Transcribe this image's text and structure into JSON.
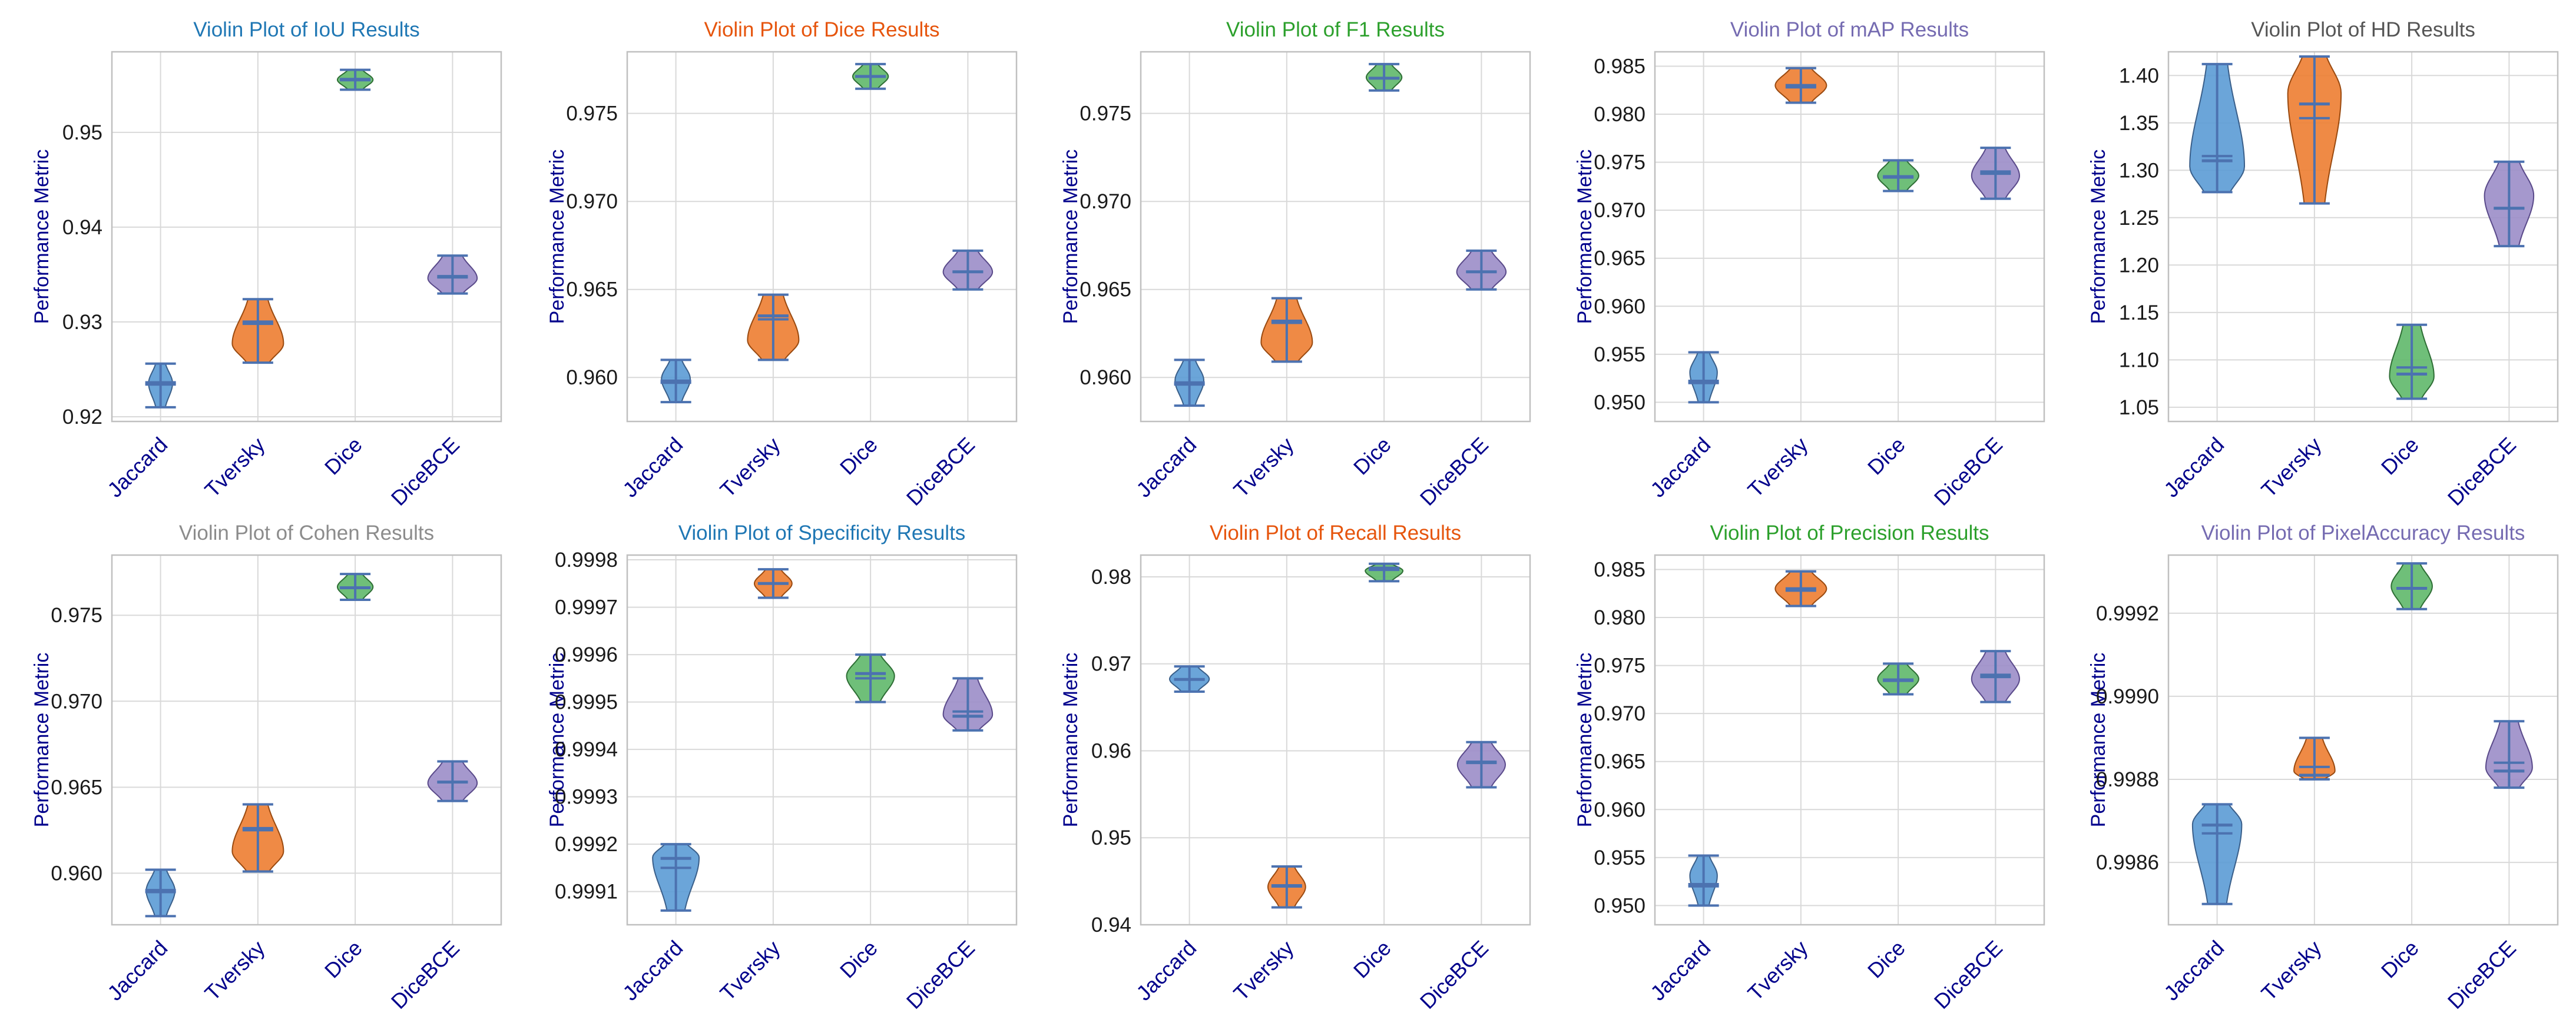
{
  "colors": {
    "series": [
      "#5b9bd5",
      "#ed7d31",
      "#5fb86a",
      "#9b8dc8"
    ],
    "edge": [
      "#3a5f8a",
      "#9a4a10",
      "#2e6e35",
      "#5a4a8a"
    ],
    "inner": "#4c72b0",
    "grid": "#d9d9d9",
    "frame": "#c0c0c0",
    "tick": "#1a1a1a",
    "ylabel": "#00008b",
    "xtick": "#00008b"
  },
  "chart_data": [
    {
      "type": "violin",
      "title": "Violin Plot of IoU Results",
      "title_color": "#1f77b4",
      "ylabel": "Performance Metric",
      "categories": [
        "Jaccard",
        "Tversky",
        "Dice",
        "DiceBCE"
      ],
      "ylim": [
        0.9195,
        0.9585
      ],
      "yticks": [
        0.92,
        0.93,
        0.94,
        0.95
      ],
      "ytick_labels": [
        "0.92",
        "0.93",
        "0.94",
        "0.95"
      ],
      "grid": true,
      "violins": [
        {
          "min": 0.921,
          "max": 0.9256,
          "median": 0.9236,
          "mean": 0.9234,
          "bulge": 0.35,
          "peak": 0.55
        },
        {
          "min": 0.9257,
          "max": 0.9324,
          "median": 0.93,
          "mean": 0.9298,
          "bulge": 0.75,
          "peak": 0.3
        },
        {
          "min": 0.9545,
          "max": 0.9566,
          "median": 0.9556,
          "mean": 0.9555,
          "bulge": 0.52,
          "peak": 0.5
        },
        {
          "min": 0.933,
          "max": 0.937,
          "median": 0.9348,
          "mean": 0.9347,
          "bulge": 0.72,
          "peak": 0.4
        }
      ]
    },
    {
      "type": "violin",
      "title": "Violin Plot of Dice Results",
      "title_color": "#e6550d",
      "ylabel": "Performance Metric",
      "categories": [
        "Jaccard",
        "Tversky",
        "Dice",
        "DiceBCE"
      ],
      "ylim": [
        0.9575,
        0.9785
      ],
      "yticks": [
        0.96,
        0.965,
        0.97,
        0.975
      ],
      "ytick_labels": [
        "0.960",
        "0.965",
        "0.970",
        "0.975"
      ],
      "grid": true,
      "violins": [
        {
          "min": 0.9586,
          "max": 0.961,
          "median": 0.9598,
          "mean": 0.9597,
          "bulge": 0.42,
          "peak": 0.55
        },
        {
          "min": 0.961,
          "max": 0.9647,
          "median": 0.9635,
          "mean": 0.9633,
          "bulge": 0.75,
          "peak": 0.3
        },
        {
          "min": 0.9764,
          "max": 0.9778,
          "median": 0.9771,
          "mean": 0.9771,
          "bulge": 0.52,
          "peak": 0.5
        },
        {
          "min": 0.965,
          "max": 0.9672,
          "median": 0.966,
          "mean": 0.966,
          "bulge": 0.72,
          "peak": 0.45
        }
      ]
    },
    {
      "type": "violin",
      "title": "Violin Plot of F1 Results",
      "title_color": "#2ca02c",
      "ylabel": "Performance Metric",
      "categories": [
        "Jaccard",
        "Tversky",
        "Dice",
        "DiceBCE"
      ],
      "ylim": [
        0.9575,
        0.9785
      ],
      "yticks": [
        0.96,
        0.965,
        0.97,
        0.975
      ],
      "ytick_labels": [
        "0.960",
        "0.965",
        "0.970",
        "0.975"
      ],
      "grid": true,
      "violins": [
        {
          "min": 0.9584,
          "max": 0.961,
          "median": 0.9597,
          "mean": 0.9596,
          "bulge": 0.42,
          "peak": 0.55
        },
        {
          "min": 0.9609,
          "max": 0.9645,
          "median": 0.9632,
          "mean": 0.9631,
          "bulge": 0.75,
          "peak": 0.3
        },
        {
          "min": 0.9763,
          "max": 0.9778,
          "median": 0.977,
          "mean": 0.977,
          "bulge": 0.52,
          "peak": 0.5
        },
        {
          "min": 0.965,
          "max": 0.9672,
          "median": 0.966,
          "mean": 0.966,
          "bulge": 0.72,
          "peak": 0.45
        }
      ]
    },
    {
      "type": "violin",
      "title": "Violin Plot of mAP Results",
      "title_color": "#756bb1",
      "ylabel": "Performance Metric",
      "categories": [
        "Jaccard",
        "Tversky",
        "Dice",
        "DiceBCE"
      ],
      "ylim": [
        0.948,
        0.9865
      ],
      "yticks": [
        0.95,
        0.955,
        0.96,
        0.965,
        0.97,
        0.975,
        0.98,
        0.985
      ],
      "ytick_labels": [
        "0.950",
        "0.955",
        "0.960",
        "0.965",
        "0.970",
        "0.975",
        "0.980",
        "0.985"
      ],
      "grid": true,
      "violins": [
        {
          "min": 0.95,
          "max": 0.9552,
          "median": 0.9522,
          "mean": 0.952,
          "bulge": 0.4,
          "peak": 0.6
        },
        {
          "min": 0.9812,
          "max": 0.9848,
          "median": 0.983,
          "mean": 0.9828,
          "bulge": 0.75,
          "peak": 0.5
        },
        {
          "min": 0.972,
          "max": 0.9752,
          "median": 0.9735,
          "mean": 0.9734,
          "bulge": 0.6,
          "peak": 0.5
        },
        {
          "min": 0.9712,
          "max": 0.9765,
          "median": 0.974,
          "mean": 0.9738,
          "bulge": 0.7,
          "peak": 0.45
        }
      ]
    },
    {
      "type": "violin",
      "title": "Violin Plot of HD Results",
      "title_color": "#555555",
      "ylabel": "Performance Metric",
      "categories": [
        "Jaccard",
        "Tversky",
        "Dice",
        "DiceBCE"
      ],
      "ylim": [
        1.035,
        1.425
      ],
      "yticks": [
        1.05,
        1.1,
        1.15,
        1.2,
        1.25,
        1.3,
        1.35,
        1.4
      ],
      "ytick_labels": [
        "1.05",
        "1.10",
        "1.15",
        "1.20",
        "1.25",
        "1.30",
        "1.35",
        "1.40"
      ],
      "grid": true,
      "violins": [
        {
          "min": 1.277,
          "max": 1.412,
          "median": 1.31,
          "mean": 1.315,
          "bulge": 0.8,
          "peak": 0.2
        },
        {
          "min": 1.265,
          "max": 1.42,
          "median": 1.37,
          "mean": 1.355,
          "bulge": 0.78,
          "peak": 0.75
        },
        {
          "min": 1.059,
          "max": 1.137,
          "median": 1.085,
          "mean": 1.092,
          "bulge": 0.65,
          "peak": 0.3
        },
        {
          "min": 1.22,
          "max": 1.309,
          "median": 1.26,
          "mean": 1.26,
          "bulge": 0.72,
          "peak": 0.6
        }
      ]
    },
    {
      "type": "violin",
      "title": "Violin Plot of Cohen Results",
      "title_color": "#8c8c8c",
      "ylabel": "Performance Metric",
      "categories": [
        "Jaccard",
        "Tversky",
        "Dice",
        "DiceBCE"
      ],
      "ylim": [
        0.957,
        0.9785
      ],
      "yticks": [
        0.96,
        0.965,
        0.97,
        0.975
      ],
      "ytick_labels": [
        "0.960",
        "0.965",
        "0.970",
        "0.975"
      ],
      "grid": true,
      "violins": [
        {
          "min": 0.9575,
          "max": 0.9602,
          "median": 0.959,
          "mean": 0.9589,
          "bulge": 0.42,
          "peak": 0.55
        },
        {
          "min": 0.9601,
          "max": 0.964,
          "median": 0.9626,
          "mean": 0.9625,
          "bulge": 0.75,
          "peak": 0.3
        },
        {
          "min": 0.9759,
          "max": 0.9774,
          "median": 0.9766,
          "mean": 0.9766,
          "bulge": 0.52,
          "peak": 0.5
        },
        {
          "min": 0.9642,
          "max": 0.9665,
          "median": 0.9653,
          "mean": 0.9653,
          "bulge": 0.72,
          "peak": 0.45
        }
      ]
    },
    {
      "type": "violin",
      "title": "Violin Plot of Specificity Results",
      "title_color": "#1f77b4",
      "ylabel": "Performance Metric",
      "categories": [
        "Jaccard",
        "Tversky",
        "Dice",
        "DiceBCE"
      ],
      "ylim": [
        0.99903,
        0.99981
      ],
      "yticks": [
        0.9991,
        0.9992,
        0.9993,
        0.9994,
        0.9995,
        0.9996,
        0.9997,
        0.9998
      ],
      "ytick_labels": [
        "0.9991",
        "0.9992",
        "0.9993",
        "0.9994",
        "0.9995",
        "0.9996",
        "0.9997",
        "0.9998"
      ],
      "grid": true,
      "violins": [
        {
          "min": 0.99906,
          "max": 0.9992,
          "median": 0.99917,
          "mean": 0.99915,
          "bulge": 0.68,
          "peak": 0.8
        },
        {
          "min": 0.99972,
          "max": 0.99978,
          "median": 0.99975,
          "mean": 0.99975,
          "bulge": 0.55,
          "peak": 0.5
        },
        {
          "min": 0.9995,
          "max": 0.9996,
          "median": 0.99956,
          "mean": 0.99955,
          "bulge": 0.7,
          "peak": 0.55
        },
        {
          "min": 0.99944,
          "max": 0.99955,
          "median": 0.99947,
          "mean": 0.99948,
          "bulge": 0.72,
          "peak": 0.3
        }
      ]
    },
    {
      "type": "violin",
      "title": "Violin Plot of Recall Results",
      "title_color": "#e6550d",
      "ylabel": "Performance Metric",
      "categories": [
        "Jaccard",
        "Tversky",
        "Dice",
        "DiceBCE"
      ],
      "ylim": [
        0.94,
        0.9825
      ],
      "yticks": [
        0.94,
        0.95,
        0.96,
        0.97,
        0.98
      ],
      "ytick_labels": [
        "0.94",
        "0.95",
        "0.96",
        "0.97",
        "0.98"
      ],
      "grid": true,
      "violins": [
        {
          "min": 0.9668,
          "max": 0.9697,
          "median": 0.9682,
          "mean": 0.9682,
          "bulge": 0.58,
          "peak": 0.5
        },
        {
          "min": 0.942,
          "max": 0.9467,
          "median": 0.9445,
          "mean": 0.9444,
          "bulge": 0.55,
          "peak": 0.5
        },
        {
          "min": 0.9795,
          "max": 0.9815,
          "median": 0.981,
          "mean": 0.9808,
          "bulge": 0.55,
          "peak": 0.6
        },
        {
          "min": 0.9558,
          "max": 0.961,
          "median": 0.9587,
          "mean": 0.9586,
          "bulge": 0.7,
          "peak": 0.5
        }
      ]
    },
    {
      "type": "violin",
      "title": "Violin Plot of Precision Results",
      "title_color": "#2ca02c",
      "ylabel": "Performance Metric",
      "categories": [
        "Jaccard",
        "Tversky",
        "Dice",
        "DiceBCE"
      ],
      "ylim": [
        0.948,
        0.9865
      ],
      "yticks": [
        0.95,
        0.955,
        0.96,
        0.965,
        0.97,
        0.975,
        0.98,
        0.985
      ],
      "ytick_labels": [
        "0.950",
        "0.955",
        "0.960",
        "0.965",
        "0.970",
        "0.975",
        "0.980",
        "0.985"
      ],
      "grid": true,
      "violins": [
        {
          "min": 0.95,
          "max": 0.9552,
          "median": 0.9522,
          "mean": 0.952,
          "bulge": 0.4,
          "peak": 0.6
        },
        {
          "min": 0.9812,
          "max": 0.9848,
          "median": 0.983,
          "mean": 0.9828,
          "bulge": 0.75,
          "peak": 0.5
        },
        {
          "min": 0.972,
          "max": 0.9752,
          "median": 0.9735,
          "mean": 0.9734,
          "bulge": 0.6,
          "peak": 0.5
        },
        {
          "min": 0.9712,
          "max": 0.9765,
          "median": 0.974,
          "mean": 0.9738,
          "bulge": 0.7,
          "peak": 0.45
        }
      ]
    },
    {
      "type": "violin",
      "title": "Violin Plot of PixelAccuracy Results",
      "title_color": "#756bb1",
      "ylabel": "Performance Metric",
      "categories": [
        "Jaccard",
        "Tversky",
        "Dice",
        "DiceBCE"
      ],
      "ylim": [
        0.99845,
        0.99934
      ],
      "yticks": [
        0.9986,
        0.9988,
        0.999,
        0.9992
      ],
      "ytick_labels": [
        "0.9986",
        "0.9988",
        "0.9990",
        "0.9992"
      ],
      "grid": true,
      "violins": [
        {
          "min": 0.9985,
          "max": 0.99874,
          "median": 0.99869,
          "mean": 0.99867,
          "bulge": 0.72,
          "peak": 0.8
        },
        {
          "min": 0.9988,
          "max": 0.9989,
          "median": 0.99881,
          "mean": 0.99883,
          "bulge": 0.6,
          "peak": 0.2
        },
        {
          "min": 0.99921,
          "max": 0.99932,
          "median": 0.99926,
          "mean": 0.99926,
          "bulge": 0.6,
          "peak": 0.5
        },
        {
          "min": 0.99878,
          "max": 0.99894,
          "median": 0.99882,
          "mean": 0.99884,
          "bulge": 0.68,
          "peak": 0.3
        }
      ]
    }
  ]
}
